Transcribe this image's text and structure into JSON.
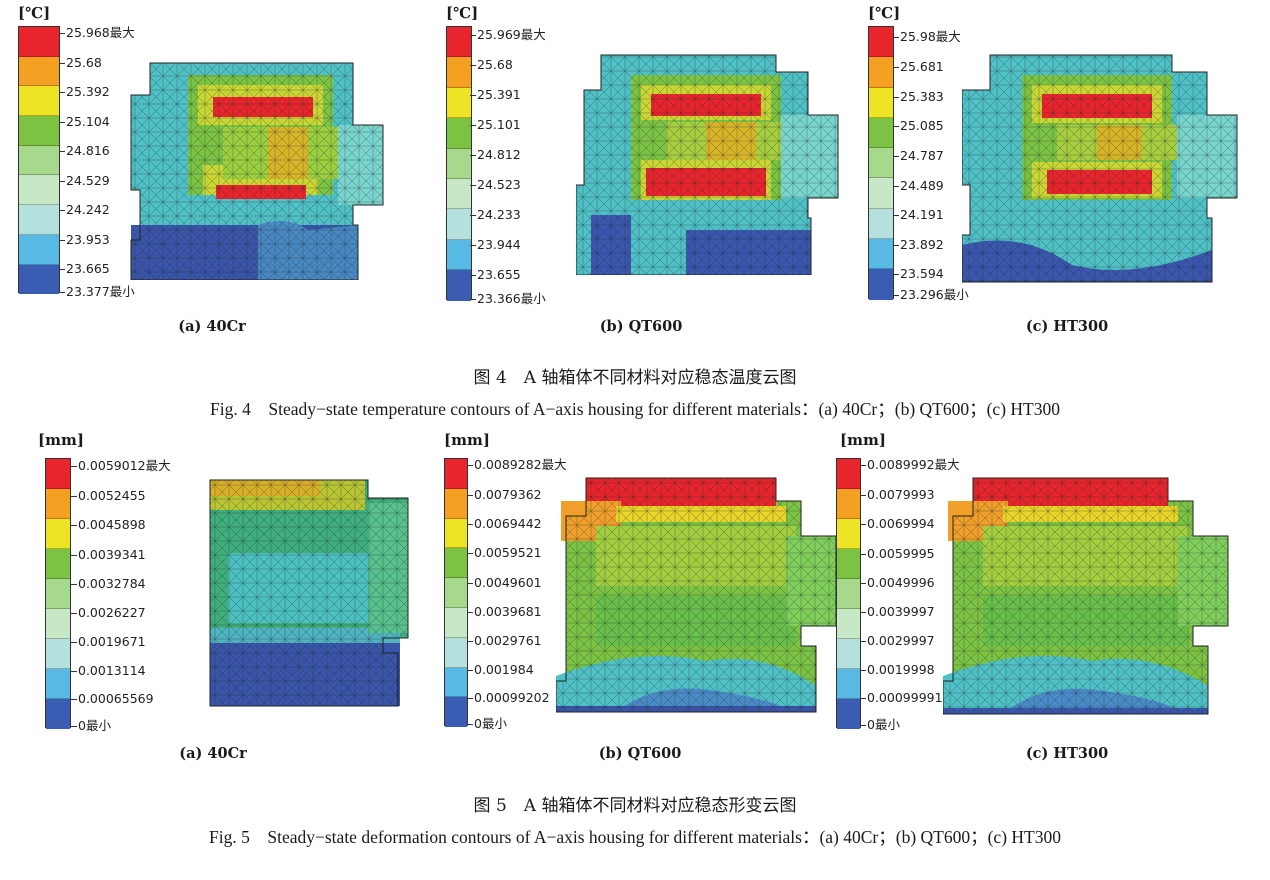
{
  "colors": [
    "#e8242c",
    "#f4a023",
    "#ede426",
    "#7cc243",
    "#a6d98b",
    "#c7e8c7",
    "#b4e1dd",
    "#57b9e4",
    "#3a5cb3"
  ],
  "fig4": {
    "caption_zh": "图 4　A 轴箱体不同材料对应稳态温度云图",
    "caption_en": "Fig. 4　Steady−state temperature contours of A−axis housing for different materials：(a) 40Cr；(b) QT600；(c) HT300",
    "panels": [
      {
        "unit": "[℃]",
        "label": "(a) 40Cr",
        "ticks": [
          "25.968最大",
          "25.68",
          "25.392",
          "25.104",
          "24.816",
          "24.529",
          "24.242",
          "23.953",
          "23.665",
          "23.377最小"
        ]
      },
      {
        "unit": "[℃]",
        "label": "(b) QT600",
        "ticks": [
          "25.969最大",
          "25.68",
          "25.391",
          "25.101",
          "24.812",
          "24.523",
          "24.233",
          "23.944",
          "23.655",
          "23.366最小"
        ]
      },
      {
        "unit": "[℃]",
        "label": "(c) HT300",
        "ticks": [
          "25.98最大",
          "25.681",
          "25.383",
          "25.085",
          "24.787",
          "24.489",
          "24.191",
          "23.892",
          "23.594",
          "23.296最小"
        ]
      }
    ]
  },
  "fig5": {
    "caption_zh": "图 5　A 轴箱体不同材料对应稳态形变云图",
    "caption_en": "Fig. 5　Steady−state deformation contours of A−axis housing for different materials：(a) 40Cr；(b) QT600；(c) HT300",
    "panels": [
      {
        "unit": "[mm]",
        "label": "(a) 40Cr",
        "ticks": [
          "0.0059012最大",
          "0.0052455",
          "0.0045898",
          "0.0039341",
          "0.0032784",
          "0.0026227",
          "0.0019671",
          "0.0013114",
          "0.00065569",
          "0最小"
        ]
      },
      {
        "unit": "[mm]",
        "label": "(b) QT600",
        "ticks": [
          "0.0089282最大",
          "0.0079362",
          "0.0069442",
          "0.0059521",
          "0.0049601",
          "0.0039681",
          "0.0029761",
          "0.001984",
          "0.00099202",
          "0最小"
        ]
      },
      {
        "unit": "[mm]",
        "label": "(c) HT300",
        "ticks": [
          "0.0089992最大",
          "0.0079993",
          "0.0069994",
          "0.0059995",
          "0.0049996",
          "0.0039997",
          "0.0029997",
          "0.0019998",
          "0.00099991",
          "0最小"
        ]
      }
    ]
  }
}
